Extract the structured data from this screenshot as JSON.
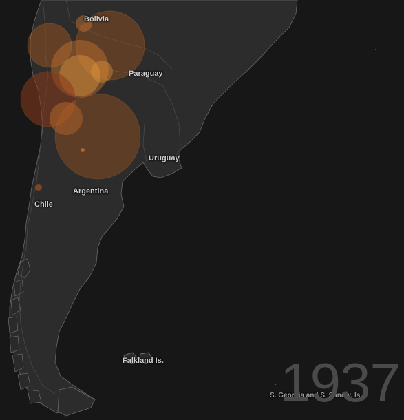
{
  "labels": {
    "bolivia": "Bolivia",
    "paraguay": "Paraguay",
    "uruguay": "Uruguay",
    "argentina": "Argentina",
    "chile": "Chile",
    "falkland": "Falkland Is.",
    "south_georgia": "S. Georgia and S. Sandw. Is."
  },
  "year": "1937",
  "colors": {
    "background": "#171717",
    "land": "#2c2c2c",
    "coast": "#6a6a6a",
    "border": "#444444",
    "bubble_fill": "#b05a20",
    "bubble_fill_light": "#e0953a"
  }
}
